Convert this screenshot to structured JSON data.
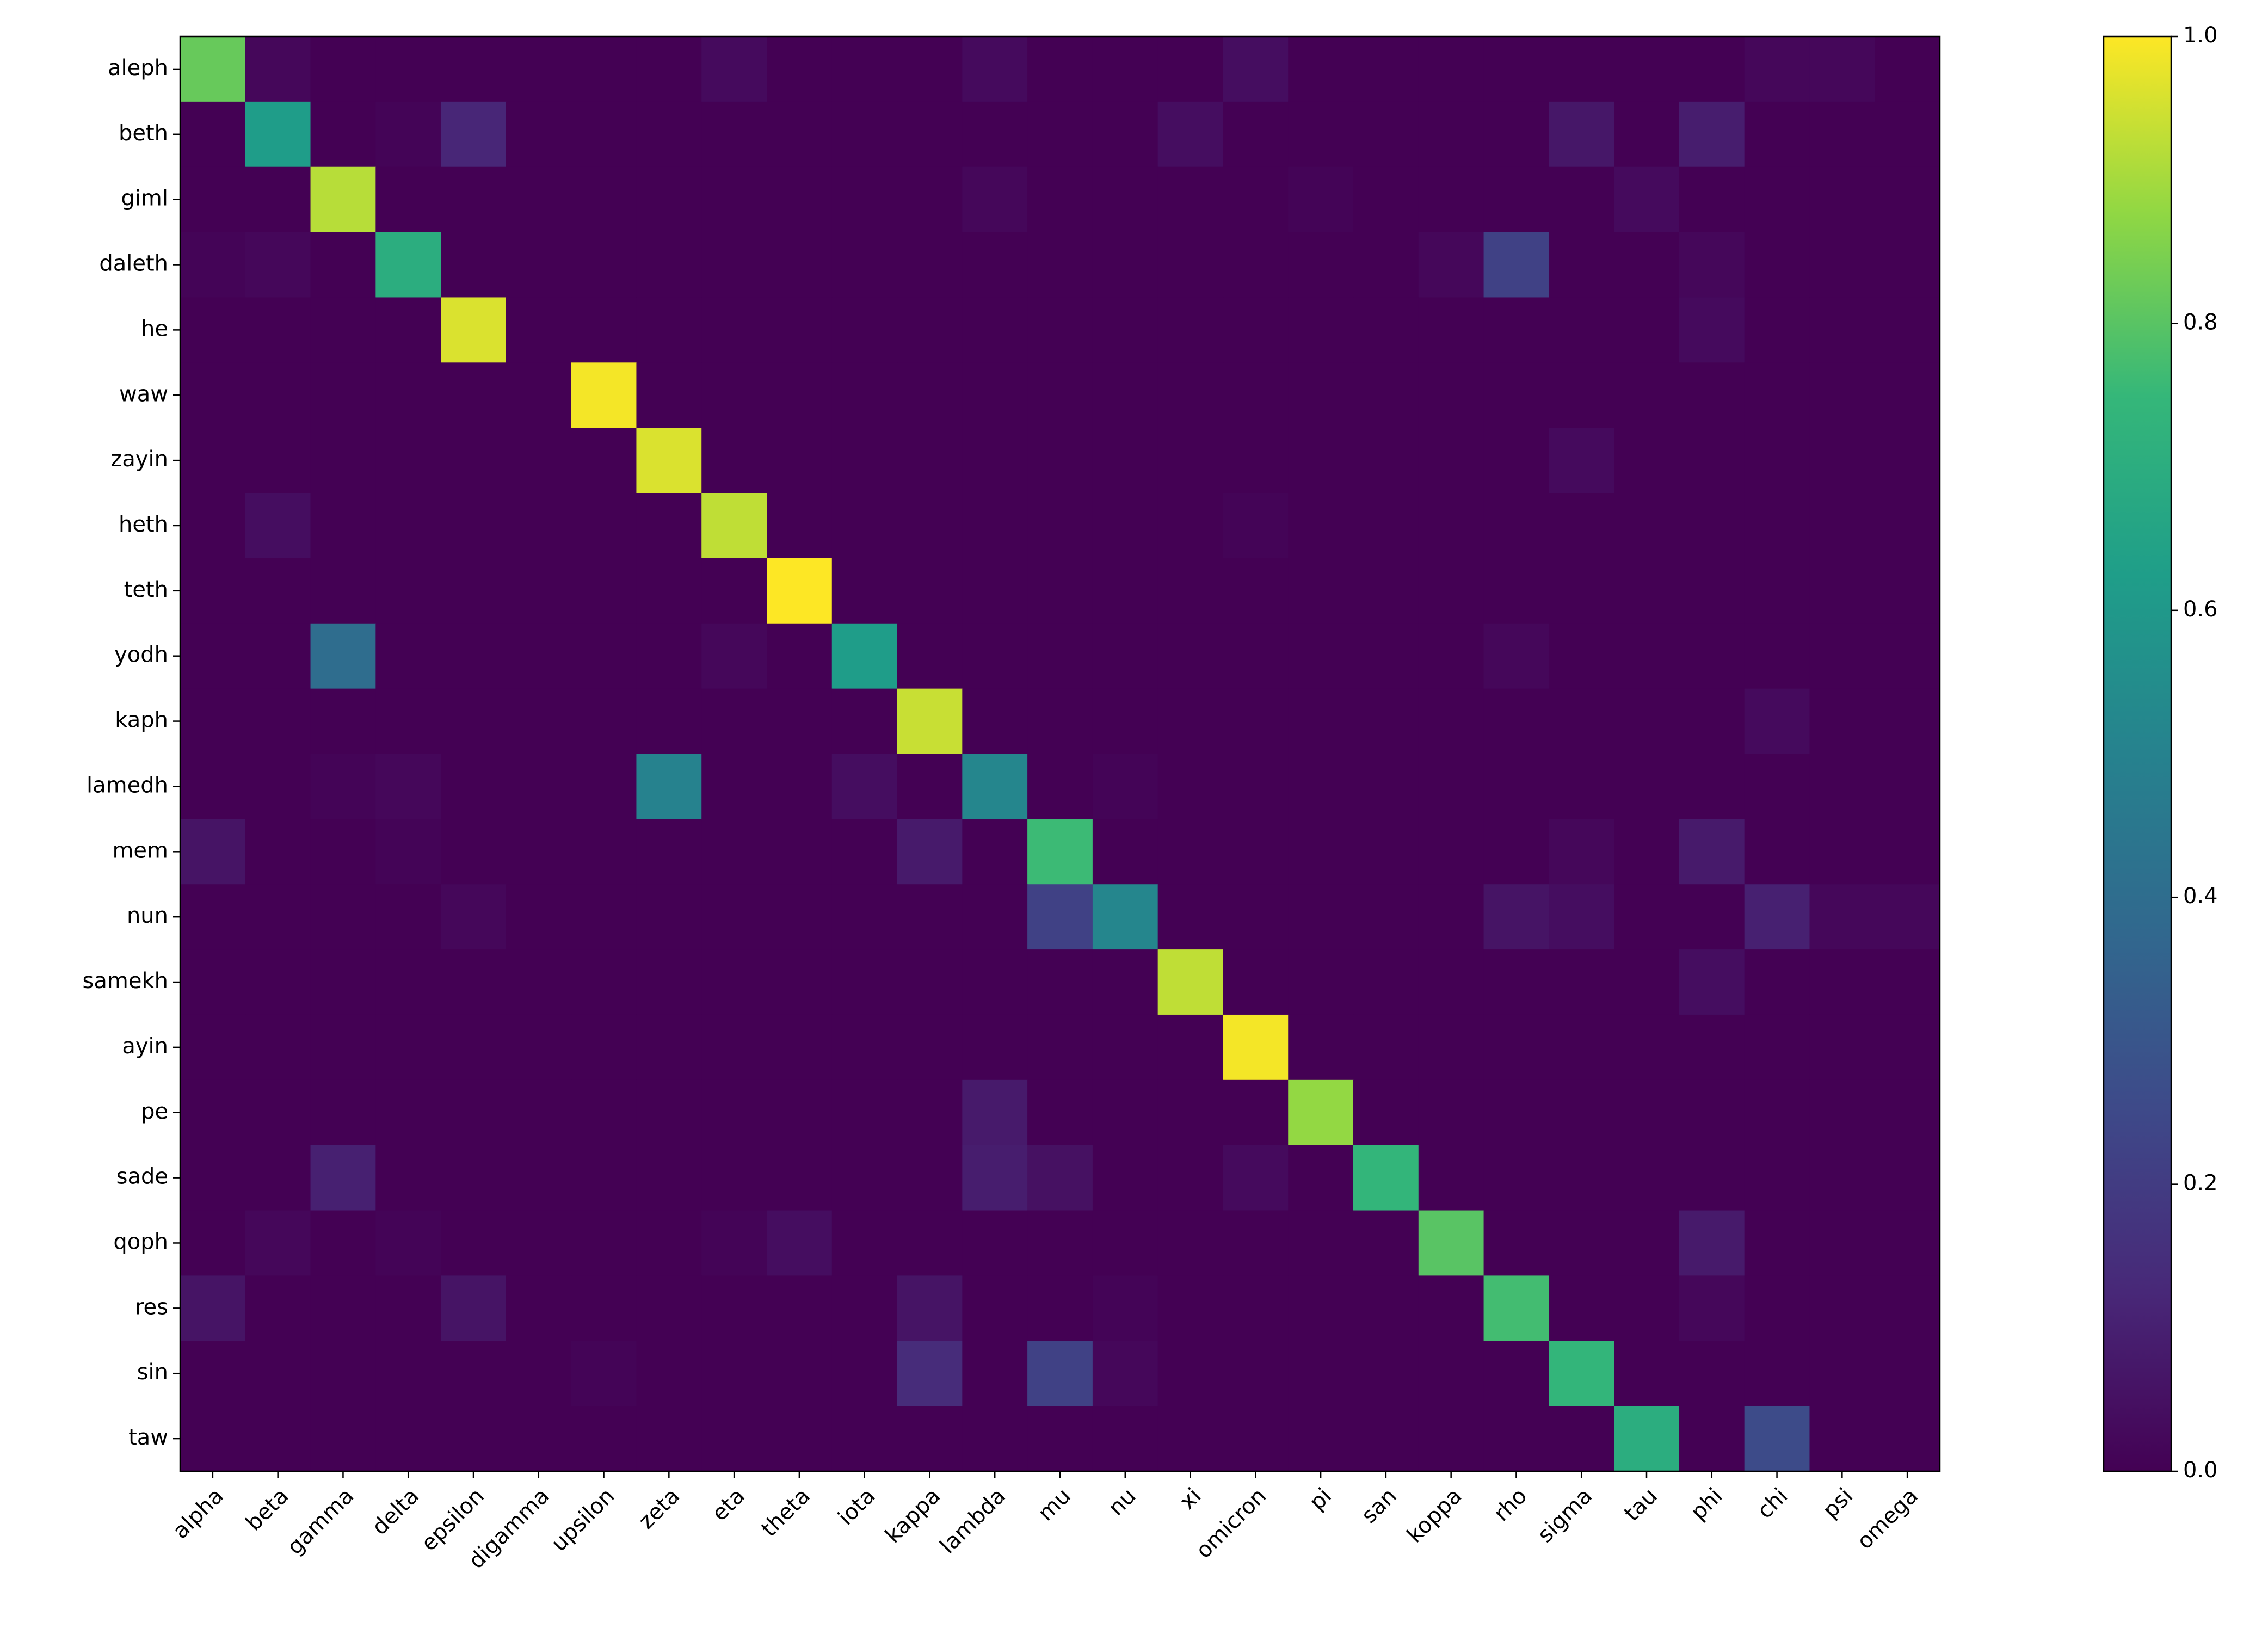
{
  "chart_data": {
    "type": "heatmap",
    "colormap": "viridis",
    "x": [
      "alpha",
      "beta",
      "gamma",
      "delta",
      "epsilon",
      "digamma",
      "upsilon",
      "zeta",
      "eta",
      "theta",
      "iota",
      "kappa",
      "lambda",
      "mu",
      "nu",
      "xi",
      "omicron",
      "pi",
      "san",
      "koppa",
      "rho",
      "sigma",
      "tau",
      "phi",
      "chi",
      "psi",
      "omega"
    ],
    "y": [
      "aleph",
      "beth",
      "giml",
      "daleth",
      "he",
      "waw",
      "zayin",
      "heth",
      "teth",
      "yodh",
      "kaph",
      "lamedh",
      "mem",
      "nun",
      "samekh",
      "ayin",
      "pe",
      "sade",
      "qoph",
      "res",
      "sin",
      "taw"
    ],
    "values": [
      [
        0.82,
        0.02,
        0,
        0,
        0,
        0,
        0,
        0,
        0.03,
        0,
        0,
        0,
        0.03,
        0,
        0,
        0,
        0.04,
        0,
        0,
        0,
        0,
        0,
        0,
        0,
        0.02,
        0.02,
        0
      ],
      [
        0,
        0.62,
        0,
        0.01,
        0.12,
        0,
        0,
        0,
        0,
        0,
        0,
        0,
        0,
        0,
        0,
        0.04,
        0,
        0,
        0,
        0,
        0,
        0.07,
        0,
        0.09,
        0,
        0,
        0
      ],
      [
        0,
        0,
        0.92,
        0,
        0,
        0,
        0,
        0,
        0,
        0,
        0,
        0,
        0.02,
        0,
        0,
        0,
        0,
        0.01,
        0,
        0,
        0,
        0,
        0.03,
        0,
        0,
        0,
        0
      ],
      [
        0.01,
        0.02,
        0,
        0.7,
        0,
        0,
        0,
        0,
        0,
        0,
        0,
        0,
        0,
        0,
        0,
        0,
        0,
        0,
        0,
        0.02,
        0.22,
        0,
        0,
        0.02,
        0,
        0,
        0
      ],
      [
        0,
        0,
        0,
        0,
        0.96,
        0,
        0,
        0,
        0,
        0,
        0,
        0,
        0,
        0,
        0,
        0,
        0,
        0,
        0,
        0,
        0,
        0,
        0,
        0.03,
        0,
        0,
        0
      ],
      [
        0,
        0,
        0,
        0,
        0,
        0,
        0.99,
        0,
        0,
        0,
        0,
        0,
        0,
        0,
        0,
        0,
        0,
        0,
        0,
        0,
        0,
        0,
        0,
        0,
        0,
        0,
        0
      ],
      [
        0,
        0,
        0,
        0,
        0,
        0,
        0,
        0.96,
        0,
        0,
        0,
        0,
        0,
        0,
        0,
        0,
        0,
        0,
        0,
        0,
        0,
        0.03,
        0,
        0,
        0,
        0,
        0
      ],
      [
        0,
        0.04,
        0,
        0,
        0,
        0,
        0,
        0,
        0.93,
        0,
        0,
        0,
        0,
        0,
        0,
        0,
        0.01,
        0,
        0,
        0,
        0,
        0,
        0,
        0,
        0,
        0,
        0
      ],
      [
        0,
        0,
        0,
        0,
        0,
        0,
        0,
        0,
        0,
        1.0,
        0,
        0,
        0,
        0,
        0,
        0,
        0,
        0,
        0,
        0,
        0,
        0,
        0,
        0,
        0,
        0,
        0
      ],
      [
        0,
        0,
        0.4,
        0,
        0,
        0,
        0,
        0,
        0.02,
        0,
        0.62,
        0,
        0,
        0,
        0,
        0,
        0,
        0,
        0,
        0,
        0.02,
        0,
        0,
        0,
        0,
        0,
        0
      ],
      [
        0,
        0,
        0,
        0,
        0,
        0,
        0,
        0,
        0,
        0,
        0,
        0.94,
        0,
        0,
        0,
        0,
        0,
        0,
        0,
        0,
        0,
        0,
        0,
        0,
        0.03,
        0,
        0
      ],
      [
        0,
        0,
        0.01,
        0.02,
        0,
        0,
        0,
        0.5,
        0,
        0,
        0.04,
        0,
        0.52,
        0,
        0.01,
        0,
        0,
        0,
        0,
        0,
        0,
        0,
        0,
        0,
        0,
        0,
        0
      ],
      [
        0.06,
        0,
        0,
        0.01,
        0,
        0,
        0,
        0,
        0,
        0,
        0,
        0.08,
        0,
        0.76,
        0,
        0,
        0,
        0,
        0,
        0,
        0,
        0.02,
        0,
        0.08,
        0,
        0,
        0
      ],
      [
        0,
        0,
        0,
        0,
        0.02,
        0,
        0,
        0,
        0,
        0,
        0,
        0,
        0,
        0.22,
        0.52,
        0,
        0,
        0,
        0,
        0,
        0.06,
        0.04,
        0,
        0,
        0.1,
        0.02,
        0.02
      ],
      [
        0,
        0,
        0,
        0,
        0,
        0,
        0,
        0,
        0,
        0,
        0,
        0,
        0,
        0,
        0,
        0.93,
        0,
        0,
        0,
        0,
        0,
        0,
        0,
        0.04,
        0,
        0,
        0
      ],
      [
        0,
        0,
        0,
        0,
        0,
        0,
        0,
        0,
        0,
        0,
        0,
        0,
        0,
        0,
        0,
        0,
        0.99,
        0,
        0,
        0,
        0,
        0,
        0,
        0,
        0,
        0,
        0
      ],
      [
        0,
        0,
        0,
        0,
        0,
        0,
        0,
        0,
        0,
        0,
        0,
        0,
        0.08,
        0,
        0,
        0,
        0,
        0.88,
        0,
        0,
        0,
        0,
        0,
        0,
        0,
        0,
        0
      ],
      [
        0,
        0,
        0.1,
        0,
        0,
        0,
        0,
        0,
        0,
        0,
        0,
        0,
        0.09,
        0.05,
        0,
        0,
        0.03,
        0,
        0.74,
        0,
        0,
        0,
        0,
        0,
        0,
        0,
        0
      ],
      [
        0,
        0.02,
        0,
        0.01,
        0,
        0,
        0,
        0,
        0.01,
        0.04,
        0,
        0,
        0,
        0,
        0,
        0,
        0,
        0,
        0,
        0.8,
        0,
        0,
        0,
        0.08,
        0,
        0,
        0
      ],
      [
        0.06,
        0,
        0,
        0,
        0.06,
        0,
        0,
        0,
        0,
        0,
        0,
        0.06,
        0,
        0,
        0.01,
        0,
        0,
        0,
        0,
        0,
        0.77,
        0,
        0,
        0.02,
        0,
        0,
        0
      ],
      [
        0,
        0,
        0,
        0,
        0,
        0,
        0.01,
        0,
        0,
        0,
        0,
        0.14,
        0,
        0.22,
        0.02,
        0,
        0,
        0,
        0,
        0,
        0,
        0.74,
        0,
        0,
        0,
        0,
        0
      ],
      [
        0,
        0,
        0,
        0,
        0,
        0,
        0,
        0,
        0,
        0,
        0,
        0,
        0,
        0,
        0,
        0,
        0,
        0,
        0,
        0,
        0,
        0,
        0.7,
        0,
        0.26,
        0,
        0
      ]
    ],
    "clim": [
      0,
      1
    ],
    "cticks": [
      {
        "value": 0,
        "label": "0.0"
      },
      0.2,
      0.4,
      0.6,
      0.8,
      {
        "value": 1,
        "label": "1.0"
      }
    ]
  }
}
